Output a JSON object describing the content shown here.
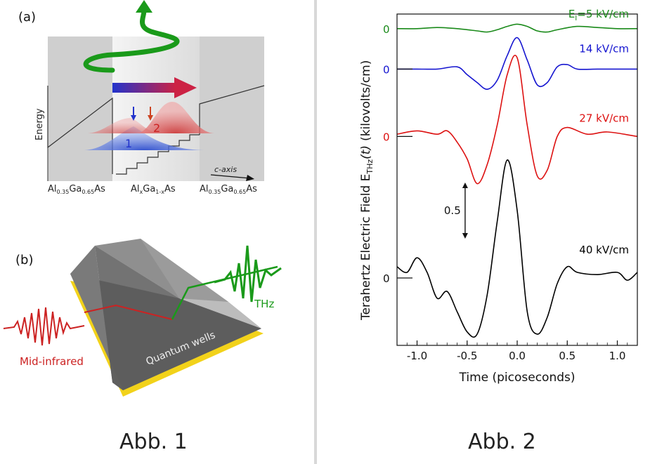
{
  "figure1": {
    "caption": "Abb. 1",
    "panel_a": {
      "label": "(a)",
      "energy_label": "Energy",
      "axis_label": "c-axis",
      "state1": "1",
      "state2": "2",
      "materials": [
        {
          "base": "Al",
          "sub1": "0.35",
          "mid": "Ga",
          "sub2": "0.65",
          "end": "As"
        },
        {
          "base": "Al",
          "sub1": "x",
          "mid": "Ga",
          "sub2": "1-x",
          "end": "As"
        },
        {
          "base": "Al",
          "sub1": "0.35",
          "mid": "Ga",
          "sub2": "0.65",
          "end": "As"
        }
      ]
    },
    "panel_b": {
      "label": "(b)",
      "mid_infrared_label": "Mid-infrared",
      "thz_label": "THz",
      "qw_label": "Quantum wells"
    },
    "colors": {
      "green": "#1a9a1a",
      "blue": "#2233cc",
      "red": "#cc2222",
      "yellow": "#f2d21a"
    }
  },
  "figure2": {
    "caption": "Abb. 2",
    "chart_data": {
      "type": "line",
      "xlabel": "Time (picoseconds)",
      "ylabel_main": "Terahertz Electric Field E",
      "ylabel_sub": "THz",
      "ylabel_t": "(t)",
      "ylabel_units": "(kilovolts/cm)",
      "xlim": [
        -1.2,
        1.2
      ],
      "xticks": [
        -1.0,
        -0.5,
        0.0,
        0.5,
        1.0
      ],
      "xtick_labels": [
        "-1.0",
        "-0.5",
        "0.0",
        "0.5",
        "1.0"
      ],
      "scale_bar_label": "0.5",
      "scale_bar_value": 0.5,
      "series": [
        {
          "name": "E",
          "name_sub": "I",
          "name_rest": "=5 kV/cm",
          "color": "#1a8a1a",
          "zero_label": "0",
          "offset": 2.22,
          "amp": 0.05,
          "x": [
            -1.2,
            -1.0,
            -0.8,
            -0.6,
            -0.4,
            -0.3,
            -0.2,
            -0.1,
            0.0,
            0.1,
            0.2,
            0.3,
            0.4,
            0.6,
            0.8,
            1.0,
            1.2
          ],
          "y": [
            0,
            0,
            0.01,
            0,
            -0.02,
            -0.03,
            -0.01,
            0.02,
            0.04,
            0.02,
            -0.02,
            -0.03,
            -0.01,
            0.02,
            0.01,
            0,
            0
          ]
        },
        {
          "name": "14 kV/cm",
          "color": "#1515d0",
          "zero_label": "0",
          "offset": 1.86,
          "amp": 1.0,
          "x": [
            -1.2,
            -1.0,
            -0.8,
            -0.6,
            -0.5,
            -0.4,
            -0.3,
            -0.2,
            -0.1,
            0.0,
            0.1,
            0.2,
            0.3,
            0.4,
            0.5,
            0.6,
            0.8,
            1.0,
            1.2
          ],
          "y": [
            0,
            0,
            0,
            0.02,
            -0.05,
            -0.12,
            -0.18,
            -0.1,
            0.12,
            0.28,
            0.08,
            -0.14,
            -0.12,
            0.02,
            0.04,
            0.0,
            0.0,
            0,
            0
          ]
        },
        {
          "name": "27 kV/cm",
          "color": "#dd1111",
          "zero_label": "0",
          "offset": 1.26,
          "amp": 1.0,
          "x": [
            -1.2,
            -1.0,
            -0.8,
            -0.7,
            -0.6,
            -0.5,
            -0.4,
            -0.3,
            -0.2,
            -0.1,
            0.0,
            0.1,
            0.2,
            0.3,
            0.4,
            0.5,
            0.7,
            0.9,
            1.2
          ],
          "y": [
            0.02,
            0.05,
            0.02,
            0.05,
            -0.05,
            -0.2,
            -0.42,
            -0.25,
            0.1,
            0.55,
            0.7,
            0.1,
            -0.35,
            -0.3,
            0.0,
            0.08,
            0.02,
            0.04,
            0.0
          ]
        },
        {
          "name": "40 kV/cm",
          "color": "#000000",
          "zero_label": "0",
          "offset": 0.0,
          "amp": 1.0,
          "x": [
            -1.2,
            -1.1,
            -1.0,
            -0.9,
            -0.8,
            -0.7,
            -0.6,
            -0.5,
            -0.4,
            -0.3,
            -0.2,
            -0.1,
            0.0,
            0.1,
            0.2,
            0.3,
            0.4,
            0.5,
            0.6,
            0.8,
            1.0,
            1.1,
            1.2
          ],
          "y": [
            0.1,
            0.05,
            0.18,
            0.05,
            -0.18,
            -0.12,
            -0.3,
            -0.48,
            -0.5,
            -0.15,
            0.5,
            1.05,
            0.6,
            -0.3,
            -0.5,
            -0.35,
            -0.05,
            0.1,
            0.05,
            0.03,
            0.05,
            -0.02,
            0.05
          ]
        }
      ]
    }
  }
}
